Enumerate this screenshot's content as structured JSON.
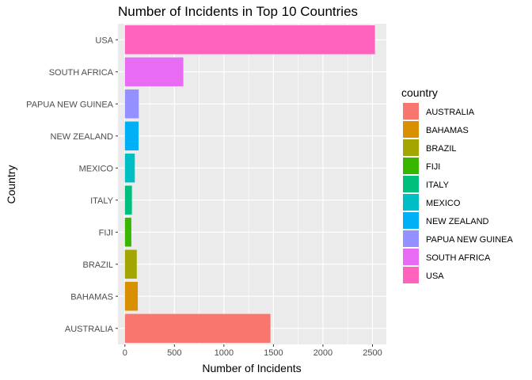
{
  "chart_data": {
    "type": "bar",
    "orientation": "horizontal",
    "title": "Number of Incidents in Top 10 Countries",
    "xlabel": "Number of Incidents",
    "ylabel": "Country",
    "xlim": [
      -70,
      2640
    ],
    "xticks": [
      0,
      500,
      1000,
      1500,
      2000,
      2500
    ],
    "categories": [
      "AUSTRALIA",
      "BAHAMAS",
      "BRAZIL",
      "FIJI",
      "ITALY",
      "MEXICO",
      "NEW ZEALAND",
      "PAPUA NEW GUINEA",
      "SOUTH AFRICA",
      "USA"
    ],
    "values": [
      1470,
      130,
      120,
      65,
      71,
      100,
      138,
      140,
      590,
      2525
    ],
    "colors": [
      "#F8766D",
      "#D89000",
      "#A3A500",
      "#39B600",
      "#00BF7D",
      "#00BFC4",
      "#00B0F6",
      "#9590FF",
      "#E76BF3",
      "#FF62BC"
    ],
    "grid": true,
    "background": "#EBEBEB",
    "legend": {
      "title": "country",
      "position": "right",
      "entries": [
        "AUSTRALIA",
        "BAHAMAS",
        "BRAZIL",
        "FIJI",
        "ITALY",
        "MEXICO",
        "NEW ZEALAND",
        "PAPUA NEW GUINEA",
        "SOUTH AFRICA",
        "USA"
      ]
    }
  }
}
